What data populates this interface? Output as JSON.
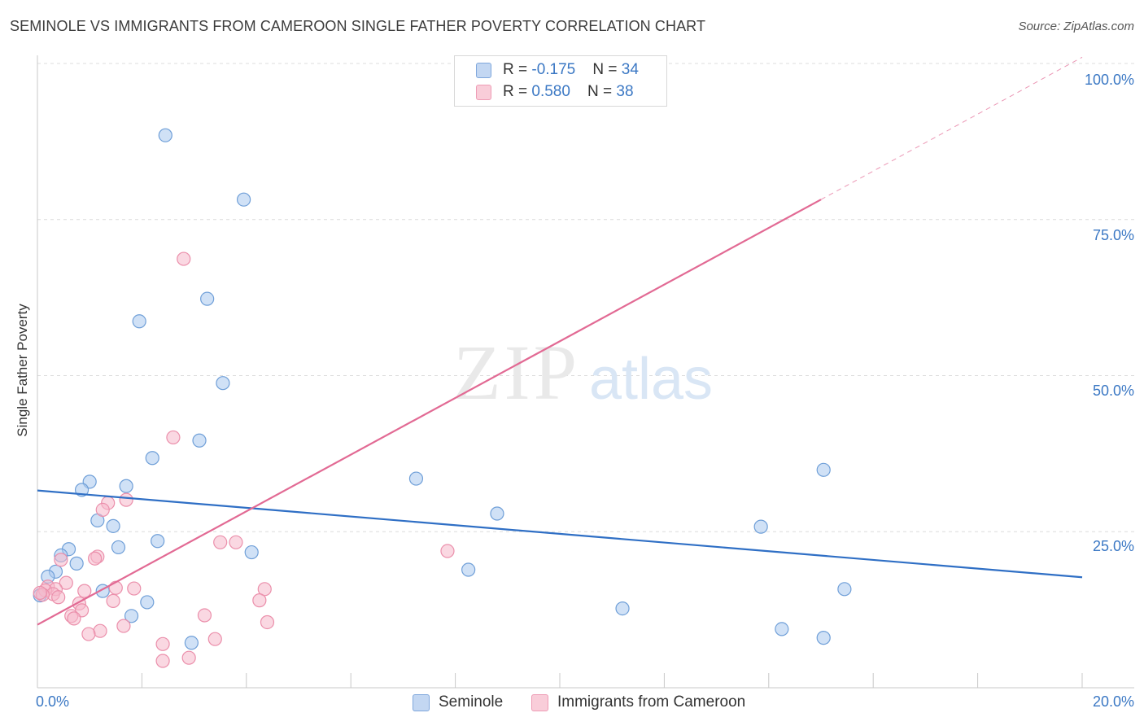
{
  "title": "SEMINOLE VS IMMIGRANTS FROM CAMEROON SINGLE FATHER POVERTY CORRELATION CHART",
  "source": "Source: ZipAtlas.com",
  "watermark": {
    "zip": "ZIP",
    "atlas": "atlas"
  },
  "legend_top": [
    {
      "r_label": "R = ",
      "r_value": "-0.175",
      "n_label": "N = ",
      "n_value": "34"
    },
    {
      "r_label": "R = ",
      "r_value": "0.580",
      "n_label": "N = ",
      "n_value": "38"
    }
  ],
  "legend_bottom": [
    "Seminole",
    "Immigrants from Cameroon"
  ],
  "colors": {
    "seminole_fill": "#aac8ef",
    "seminole_stroke": "#6f9fd8",
    "seminole_line": "#2f6fc5",
    "cameroon_fill": "#f6b8cb",
    "cameroon_stroke": "#eb8fab",
    "cameroon_line": "#e26a94",
    "tick_text": "#3b78c4",
    "grid": "#dcdcdc"
  },
  "chart_data": {
    "type": "scatter",
    "title": "SEMINOLE VS IMMIGRANTS FROM CAMEROON SINGLE FATHER POVERTY CORRELATION CHART",
    "xlabel": "",
    "ylabel": "Single Father Poverty",
    "xlim": [
      0,
      20
    ],
    "ylim": [
      0,
      100
    ],
    "x_tick_labels": [
      "0.0%",
      "20.0%"
    ],
    "y_ticks": [
      25,
      50,
      75,
      100
    ],
    "y_tick_labels": [
      "25.0%",
      "50.0%",
      "75.0%",
      "100.0%"
    ],
    "grid": true,
    "legend_position": "bottom",
    "series": [
      {
        "name": "Seminole",
        "color": "#aac8ef",
        "r": -0.175,
        "n": 34,
        "trend": {
          "x": [
            0,
            20
          ],
          "y": [
            31.6,
            17.7
          ]
        },
        "points": [
          [
            2.45,
            88.5
          ],
          [
            3.95,
            78.2
          ],
          [
            3.25,
            62.3
          ],
          [
            1.95,
            58.7
          ],
          [
            3.55,
            48.8
          ],
          [
            3.1,
            39.6
          ],
          [
            2.2,
            36.8
          ],
          [
            1.0,
            33.0
          ],
          [
            0.85,
            31.7
          ],
          [
            1.7,
            32.3
          ],
          [
            1.15,
            26.8
          ],
          [
            1.45,
            25.9
          ],
          [
            0.6,
            22.2
          ],
          [
            1.55,
            22.5
          ],
          [
            2.3,
            23.5
          ],
          [
            4.1,
            21.7
          ],
          [
            0.45,
            21.2
          ],
          [
            0.75,
            19.9
          ],
          [
            0.35,
            18.6
          ],
          [
            0.2,
            17.8
          ],
          [
            1.25,
            15.5
          ],
          [
            2.1,
            13.7
          ],
          [
            1.8,
            11.5
          ],
          [
            2.95,
            7.2
          ],
          [
            7.25,
            33.5
          ],
          [
            8.8,
            27.9
          ],
          [
            8.25,
            18.9
          ],
          [
            11.2,
            12.7
          ],
          [
            13.85,
            25.8
          ],
          [
            15.05,
            34.9
          ],
          [
            14.25,
            9.4
          ],
          [
            15.45,
            15.8
          ],
          [
            15.05,
            8.0
          ],
          [
            0.05,
            14.8
          ]
        ]
      },
      {
        "name": "Immigrants from Cameroon",
        "color": "#f6b8cb",
        "r": 0.58,
        "n": 38,
        "trend": {
          "x": [
            0,
            15
          ],
          "y": [
            10.1,
            78.2
          ]
        },
        "trend_dashed": {
          "x": [
            15,
            20
          ],
          "y": [
            78.2,
            101.0
          ]
        },
        "points": [
          [
            2.8,
            68.7
          ],
          [
            2.6,
            40.1
          ],
          [
            1.7,
            30.1
          ],
          [
            1.35,
            29.6
          ],
          [
            1.25,
            28.5
          ],
          [
            1.15,
            21.0
          ],
          [
            1.1,
            20.7
          ],
          [
            0.45,
            20.5
          ],
          [
            3.5,
            23.3
          ],
          [
            3.8,
            23.3
          ],
          [
            7.85,
            21.9
          ],
          [
            0.55,
            16.8
          ],
          [
            0.2,
            16.2
          ],
          [
            0.35,
            15.8
          ],
          [
            0.15,
            15.6
          ],
          [
            0.3,
            15.0
          ],
          [
            0.1,
            14.9
          ],
          [
            0.4,
            14.5
          ],
          [
            0.9,
            15.5
          ],
          [
            1.5,
            16.0
          ],
          [
            1.85,
            15.9
          ],
          [
            4.35,
            15.8
          ],
          [
            0.8,
            13.5
          ],
          [
            1.45,
            13.9
          ],
          [
            4.25,
            14.0
          ],
          [
            0.85,
            12.4
          ],
          [
            0.65,
            11.5
          ],
          [
            0.7,
            11.1
          ],
          [
            3.2,
            11.6
          ],
          [
            4.4,
            10.5
          ],
          [
            1.65,
            9.9
          ],
          [
            1.2,
            9.1
          ],
          [
            0.98,
            8.6
          ],
          [
            3.4,
            7.8
          ],
          [
            2.4,
            7.0
          ],
          [
            2.4,
            4.3
          ],
          [
            2.9,
            4.8
          ],
          [
            0.05,
            15.2
          ]
        ]
      }
    ]
  }
}
